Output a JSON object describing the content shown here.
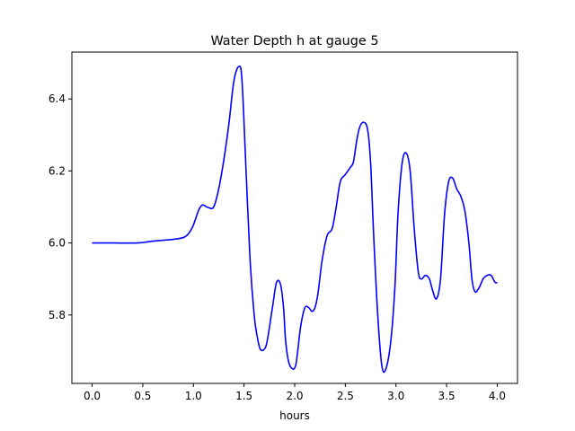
{
  "chart_data": {
    "type": "line",
    "title": "Water Depth h at gauge 5",
    "xlabel": "hours",
    "ylabel": "",
    "xlim": [
      -0.2,
      4.2
    ],
    "ylim": [
      5.61,
      6.53
    ],
    "xticks": [
      0.0,
      0.5,
      1.0,
      1.5,
      2.0,
      2.5,
      3.0,
      3.5,
      4.0
    ],
    "xtick_labels": [
      "0.0",
      "0.5",
      "1.0",
      "1.5",
      "2.0",
      "2.5",
      "3.0",
      "3.5",
      "4.0"
    ],
    "yticks": [
      5.8,
      6.0,
      6.2,
      6.4
    ],
    "ytick_labels": [
      "5.8",
      "6.0",
      "6.2",
      "6.4"
    ],
    "grid": false,
    "series": [
      {
        "color": "#0000ff",
        "x": [
          0.0,
          0.2,
          0.45,
          0.6,
          0.8,
          0.9,
          0.95,
          1.0,
          1.05,
          1.08,
          1.1,
          1.15,
          1.2,
          1.25,
          1.3,
          1.35,
          1.4,
          1.45,
          1.48,
          1.52,
          1.56,
          1.6,
          1.63,
          1.66,
          1.7,
          1.73,
          1.78,
          1.82,
          1.86,
          1.89,
          1.91,
          1.94,
          1.98,
          2.01,
          2.03,
          2.06,
          2.1,
          2.14,
          2.17,
          2.2,
          2.23,
          2.27,
          2.32,
          2.37,
          2.41,
          2.45,
          2.5,
          2.55,
          2.58,
          2.61,
          2.64,
          2.68,
          2.72,
          2.75,
          2.78,
          2.82,
          2.86,
          2.9,
          2.95,
          2.99,
          3.02,
          3.06,
          3.1,
          3.14,
          3.18,
          3.22,
          3.25,
          3.29,
          3.33,
          3.36,
          3.4,
          3.44,
          3.48,
          3.52,
          3.56,
          3.6,
          3.64,
          3.68,
          3.72,
          3.75,
          3.78,
          3.82,
          3.86,
          3.9,
          3.94,
          3.96,
          3.98,
          4.0
        ],
        "y": [
          6.0,
          6.0,
          6.0,
          6.005,
          6.01,
          6.015,
          6.025,
          6.05,
          6.09,
          6.104,
          6.105,
          6.098,
          6.1,
          6.15,
          6.23,
          6.33,
          6.45,
          6.49,
          6.45,
          6.2,
          5.95,
          5.8,
          5.74,
          5.705,
          5.705,
          5.73,
          5.82,
          5.89,
          5.885,
          5.82,
          5.73,
          5.67,
          5.65,
          5.66,
          5.7,
          5.77,
          5.82,
          5.82,
          5.81,
          5.82,
          5.86,
          5.95,
          6.02,
          6.04,
          6.1,
          6.17,
          6.19,
          6.21,
          6.225,
          6.28,
          6.32,
          6.335,
          6.315,
          6.22,
          6.02,
          5.8,
          5.66,
          5.65,
          5.73,
          5.88,
          6.08,
          6.22,
          6.25,
          6.2,
          6.04,
          5.92,
          5.9,
          5.91,
          5.9,
          5.87,
          5.845,
          5.9,
          6.08,
          6.17,
          6.18,
          6.15,
          6.13,
          6.09,
          6.0,
          5.9,
          5.865,
          5.875,
          5.9,
          5.91,
          5.91,
          5.9,
          5.89,
          5.89
        ]
      }
    ]
  }
}
